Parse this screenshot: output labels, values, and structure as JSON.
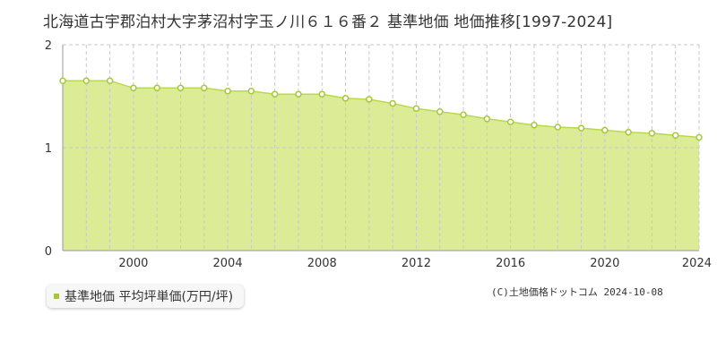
{
  "title": "北海道古宇郡泊村大字茅沼村字玉ノ川６１６番２ 基準地価 地価推移[1997-2024]",
  "legend_label": "基準地価 平均坪単価(万円/坪)",
  "copyright": "(C)土地価格ドットコム 2024-10-08",
  "colors": {
    "fill": "#dcec96",
    "line": "#b8d84e",
    "marker": "#a3c93a",
    "grid": "#c8c8c8"
  },
  "chart_data": {
    "type": "area",
    "x": [
      1997,
      1998,
      1999,
      2000,
      2001,
      2002,
      2003,
      2004,
      2005,
      2006,
      2007,
      2008,
      2009,
      2010,
      2011,
      2012,
      2013,
      2014,
      2015,
      2016,
      2017,
      2018,
      2019,
      2020,
      2021,
      2022,
      2023,
      2024
    ],
    "series": [
      {
        "values": [
          1.65,
          1.65,
          1.65,
          1.58,
          1.58,
          1.58,
          1.58,
          1.55,
          1.55,
          1.52,
          1.52,
          1.52,
          1.48,
          1.47,
          1.43,
          1.38,
          1.35,
          1.32,
          1.28,
          1.25,
          1.22,
          1.2,
          1.19,
          1.17,
          1.15,
          1.14,
          1.12,
          1.1
        ]
      }
    ],
    "xticks": [
      "2000",
      "2004",
      "2008",
      "2012",
      "2016",
      "2020",
      "2024"
    ],
    "xtick_values": [
      2000,
      2004,
      2008,
      2012,
      2016,
      2020,
      2024
    ],
    "yticks": [
      "0",
      "1",
      "2"
    ],
    "ytick_values": [
      0,
      1,
      2
    ],
    "xlim": [
      1997,
      2024
    ],
    "ylim": [
      0,
      2
    ],
    "xlabel": "",
    "ylabel": "",
    "grid": true
  }
}
